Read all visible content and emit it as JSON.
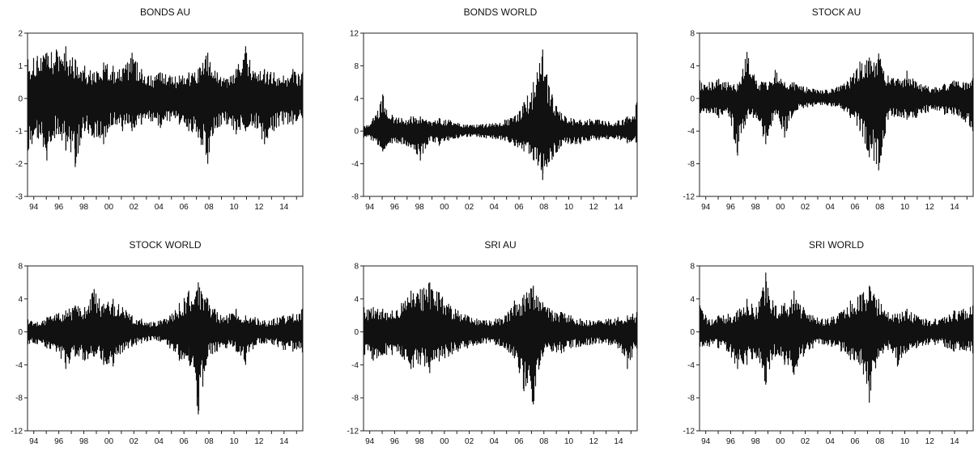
{
  "chart_data": [
    {
      "type": "line",
      "title": "BONDS AU",
      "x_start": 1993.5,
      "x_end": 2015.5,
      "xticks": [
        "94",
        "96",
        "98",
        "00",
        "02",
        "04",
        "06",
        "08",
        "10",
        "12",
        "14"
      ],
      "ylim": [
        -3,
        2
      ],
      "yticks": [
        "2",
        "1",
        "0",
        "-1",
        "-2",
        "-3"
      ],
      "series": [
        {
          "values": [
            1.2,
            -1.6,
            1.3,
            -1.2,
            1.4,
            -1.9,
            1.5,
            -1.1,
            1.6,
            -1.6,
            1.2,
            -2.1,
            1.0,
            -1.0,
            0.8,
            -1.2,
            1.1,
            -1.4,
            1.0,
            -0.8,
            0.9,
            -1.0,
            1.4,
            -1.0,
            0.9,
            -0.8,
            0.7,
            -0.7,
            0.8,
            -0.9,
            0.7,
            -0.7,
            0.7,
            -0.8,
            0.8,
            -1.0,
            0.9,
            -1.2,
            1.4,
            -2.0,
            0.8,
            -0.9,
            0.6,
            -0.8,
            0.9,
            -1.1,
            1.6,
            -1.0,
            0.8,
            -0.9,
            0.9,
            -1.4,
            0.8,
            -1.0,
            0.7,
            -0.8,
            0.9,
            -0.8,
            0.8,
            -0.6
          ]
        }
      ]
    },
    {
      "type": "line",
      "title": "BONDS WORLD",
      "x_start": 1993.5,
      "x_end": 2015.5,
      "xticks": [
        "94",
        "96",
        "98",
        "00",
        "02",
        "04",
        "06",
        "08",
        "10",
        "12",
        "14"
      ],
      "ylim": [
        -8,
        12
      ],
      "yticks": [
        "12",
        "8",
        "4",
        "0",
        "-4",
        "-8"
      ],
      "series": [
        {
          "values": [
            0.6,
            -0.8,
            1.6,
            -1.2,
            4.5,
            -2.5,
            2.0,
            -1.5,
            1.6,
            -1.6,
            1.8,
            -2.0,
            1.8,
            -3.6,
            1.2,
            -1.2,
            1.6,
            -1.8,
            1.4,
            -1.2,
            1.0,
            -0.9,
            0.8,
            -0.7,
            0.8,
            -0.7,
            0.9,
            -0.9,
            1.0,
            -1.0,
            1.4,
            -1.2,
            1.8,
            -1.8,
            3.5,
            -2.5,
            6.0,
            -3.5,
            10.0,
            -6.0,
            4.5,
            -3.5,
            2.2,
            -1.8,
            1.6,
            -1.6,
            1.4,
            -1.6,
            1.5,
            -1.2,
            1.4,
            -1.1,
            1.2,
            -1.0,
            1.3,
            -1.0,
            1.8,
            -1.5,
            3.5,
            -1.4
          ]
        }
      ]
    },
    {
      "type": "line",
      "title": "STOCK AU",
      "x_start": 1993.5,
      "x_end": 2015.5,
      "xticks": [
        "94",
        "96",
        "98",
        "00",
        "02",
        "04",
        "06",
        "08",
        "10",
        "12",
        "14"
      ],
      "ylim": [
        -12,
        8
      ],
      "yticks": [
        "8",
        "4",
        "0",
        "-4",
        "-8",
        "-12"
      ],
      "series": [
        {
          "values": [
            2.2,
            -1.8,
            2.0,
            -1.8,
            2.4,
            -2.4,
            2.0,
            -1.8,
            1.8,
            -7.0,
            5.7,
            -2.5,
            2.2,
            -2.4,
            2.0,
            -5.6,
            3.5,
            -2.0,
            2.0,
            -4.8,
            2.0,
            -1.6,
            1.5,
            -1.2,
            1.2,
            -1.0,
            1.0,
            -0.8,
            1.2,
            -1.0,
            1.6,
            -1.2,
            2.6,
            -2.4,
            4.5,
            -4.0,
            5.0,
            -7.2,
            5.5,
            -8.8,
            2.8,
            -2.6,
            2.4,
            -2.2,
            3.4,
            -2.6,
            2.0,
            -2.4,
            1.6,
            -1.8,
            1.4,
            -1.4,
            1.8,
            -2.0,
            2.2,
            -2.0,
            2.0,
            -2.6,
            2.5,
            -4.0
          ]
        }
      ]
    },
    {
      "type": "line",
      "title": "STOCK WORLD",
      "x_start": 1993.5,
      "x_end": 2015.5,
      "xticks": [
        "94",
        "96",
        "98",
        "00",
        "02",
        "04",
        "06",
        "08",
        "10",
        "12",
        "14"
      ],
      "ylim": [
        -12,
        8
      ],
      "yticks": [
        "8",
        "4",
        "0",
        "-4",
        "-8",
        "-12"
      ],
      "series": [
        {
          "values": [
            1.5,
            -1.5,
            1.2,
            -1.5,
            1.8,
            -2.0,
            2.2,
            -2.4,
            2.6,
            -4.5,
            3.2,
            -3.0,
            3.0,
            -3.5,
            5.2,
            -3.0,
            3.4,
            -4.0,
            4.0,
            -4.2,
            3.0,
            -2.5,
            2.0,
            -1.8,
            1.6,
            -1.4,
            1.2,
            -1.0,
            1.4,
            -1.2,
            2.0,
            -2.0,
            3.5,
            -3.5,
            5.0,
            -3.5,
            6.0,
            -10.0,
            4.0,
            -3.0,
            2.4,
            -2.4,
            2.0,
            -2.0,
            2.8,
            -2.4,
            2.0,
            -4.0,
            1.8,
            -1.6,
            1.4,
            -1.4,
            1.6,
            -1.6,
            2.0,
            -2.2,
            2.2,
            -2.4,
            2.8,
            -2.5
          ]
        }
      ]
    },
    {
      "type": "line",
      "title": "SRI AU",
      "x_start": 1993.5,
      "x_end": 2015.5,
      "xticks": [
        "94",
        "96",
        "98",
        "00",
        "02",
        "04",
        "06",
        "08",
        "10",
        "12",
        "14"
      ],
      "ylim": [
        -12,
        8
      ],
      "yticks": [
        "8",
        "4",
        "0",
        "-4",
        "-8",
        "-12"
      ],
      "series": [
        {
          "values": [
            3.0,
            -2.8,
            3.0,
            -3.5,
            2.8,
            -2.8,
            2.6,
            -2.8,
            3.5,
            -3.0,
            5.0,
            -4.5,
            5.2,
            -4.0,
            6.0,
            -5.0,
            4.8,
            -3.6,
            3.4,
            -3.0,
            2.6,
            -2.4,
            2.0,
            -2.0,
            1.6,
            -1.6,
            1.4,
            -1.4,
            1.6,
            -1.6,
            2.0,
            -2.0,
            3.8,
            -3.2,
            4.5,
            -7.2,
            5.6,
            -8.8,
            3.6,
            -3.0,
            2.6,
            -2.4,
            2.4,
            -2.6,
            2.0,
            -2.0,
            1.6,
            -1.8,
            1.4,
            -1.6,
            1.4,
            -1.4,
            1.6,
            -1.6,
            1.8,
            -2.0,
            2.0,
            -4.5,
            2.4,
            -2.0
          ]
        }
      ]
    },
    {
      "type": "line",
      "title": "SRI WORLD",
      "x_start": 1993.5,
      "x_end": 2015.5,
      "xticks": [
        "94",
        "96",
        "98",
        "00",
        "02",
        "04",
        "06",
        "08",
        "10",
        "12",
        "14"
      ],
      "ylim": [
        -12,
        8
      ],
      "yticks": [
        "8",
        "4",
        "0",
        "-4",
        "-8",
        "-12"
      ],
      "series": [
        {
          "values": [
            3.2,
            -1.8,
            1.5,
            -1.8,
            2.0,
            -2.0,
            2.2,
            -2.4,
            2.6,
            -4.5,
            4.0,
            -4.0,
            3.0,
            -3.2,
            7.2,
            -6.4,
            3.2,
            -3.0,
            3.5,
            -4.0,
            5.0,
            -5.2,
            3.0,
            -3.0,
            2.0,
            -2.0,
            1.6,
            -1.5,
            1.8,
            -1.8,
            2.4,
            -2.4,
            3.8,
            -3.4,
            4.5,
            -4.0,
            5.6,
            -8.6,
            4.0,
            -3.0,
            2.4,
            -2.2,
            2.2,
            -4.2,
            2.8,
            -2.4,
            2.0,
            -2.0,
            1.6,
            -1.6,
            1.6,
            -1.6,
            1.8,
            -1.8,
            2.6,
            -2.4,
            2.8,
            -2.2,
            3.2,
            -2.6
          ]
        }
      ]
    }
  ]
}
